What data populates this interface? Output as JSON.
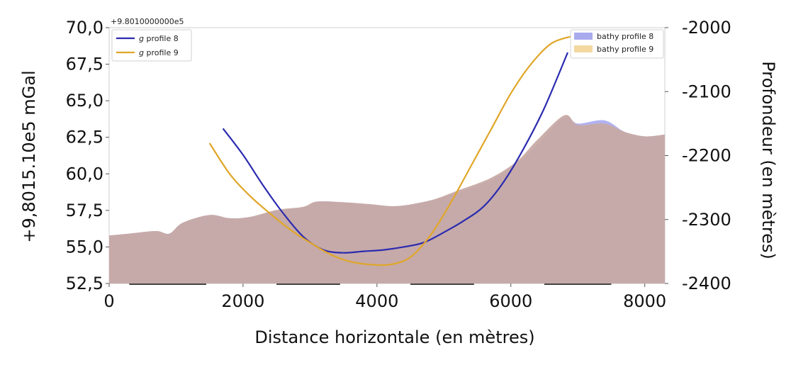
{
  "chart_data": {
    "type": "area",
    "offset_label": "+9.8010000000e5",
    "xlabel": "Distance horizontale (en mètres)",
    "ylabel_left": "+9,8015.10e5 mGal",
    "ylabel_right": "Profondeur (en mètres)",
    "xlim": [
      0,
      8300
    ],
    "ylim_left": [
      52.5,
      70.0
    ],
    "ylim_right": [
      -2400,
      -2000
    ],
    "x_ticks": [
      {
        "value": 0,
        "label": "0"
      },
      {
        "value": 2000,
        "label": "2000"
      },
      {
        "value": 4000,
        "label": "4000"
      },
      {
        "value": 6000,
        "label": "6000"
      },
      {
        "value": 8000,
        "label": "8000"
      }
    ],
    "y_left_ticks": [
      {
        "value": 52.5,
        "label": "52,5"
      },
      {
        "value": 55.0,
        "label": "55,0"
      },
      {
        "value": 57.5,
        "label": "57,5"
      },
      {
        "value": 60.0,
        "label": "60,0"
      },
      {
        "value": 62.5,
        "label": "62,5"
      },
      {
        "value": 65.0,
        "label": "65,0"
      },
      {
        "value": 67.5,
        "label": "67,5"
      },
      {
        "value": 70.0,
        "label": "70,0"
      }
    ],
    "y_right_ticks": [
      {
        "value": -2000,
        "label": "-2000"
      },
      {
        "value": -2100,
        "label": "-2100"
      },
      {
        "value": -2200,
        "label": "-2200"
      },
      {
        "value": -2300,
        "label": "-2300"
      },
      {
        "value": -2400,
        "label": "-2400"
      }
    ],
    "legend_left": {
      "placement": "top-left",
      "entries": [
        {
          "name": "g profile 8",
          "italic_prefix": "g",
          "rest": " profile 8",
          "color": "#2b2bb0"
        },
        {
          "name": "g profile 9",
          "italic_prefix": "g",
          "rest": " profile 9",
          "color": "#e0a628"
        }
      ]
    },
    "legend_right": {
      "placement": "top-right",
      "entries": [
        {
          "name": "bathy profile 8",
          "color": "#a9aaee"
        },
        {
          "name": "bathy profile 9",
          "color": "#f3d8a0"
        }
      ]
    },
    "series": [
      {
        "name": "g profile 8",
        "axis": "left",
        "kind": "line",
        "color": "#2b2bb0",
        "x": [
          1700,
          2000,
          2300,
          2600,
          2900,
          3200,
          3500,
          3800,
          4100,
          4400,
          4700,
          5000,
          5300,
          5600,
          5900,
          6200,
          6500,
          6850
        ],
        "y": [
          63.1,
          61.3,
          59.2,
          57.3,
          55.7,
          54.8,
          54.6,
          54.7,
          54.8,
          55.0,
          55.3,
          56.0,
          56.8,
          57.8,
          59.5,
          61.8,
          64.5,
          68.3
        ]
      },
      {
        "name": "g profile 9",
        "axis": "left",
        "kind": "line",
        "color": "#e0a628",
        "x": [
          1500,
          1800,
          2100,
          2400,
          2700,
          3000,
          3300,
          3600,
          3900,
          4200,
          4500,
          4800,
          5100,
          5400,
          5700,
          6000,
          6300,
          6600,
          6900
        ],
        "y": [
          62.1,
          60.0,
          58.5,
          57.3,
          56.2,
          55.3,
          54.5,
          54.0,
          53.8,
          53.8,
          54.3,
          55.8,
          58.0,
          60.5,
          63.0,
          65.5,
          67.5,
          68.9,
          69.4
        ]
      },
      {
        "name": "bathy profile 8",
        "axis": "right",
        "kind": "area",
        "color": "#a9aaee",
        "x": [
          0,
          300,
          700,
          900,
          1100,
          1500,
          1800,
          2100,
          2500,
          2900,
          3100,
          3500,
          3900,
          4300,
          4800,
          5200,
          5700,
          6100,
          6400,
          6800,
          7000,
          7400,
          7700,
          8000,
          8300
        ],
        "y": [
          -2325,
          -2322,
          -2318,
          -2322,
          -2305,
          -2293,
          -2298,
          -2296,
          -2286,
          -2281,
          -2272,
          -2273,
          -2276,
          -2279,
          -2270,
          -2258,
          -2238,
          -2212,
          -2182,
          -2140,
          -2150,
          -2145,
          -2163,
          -2170,
          -2167
        ]
      },
      {
        "name": "bathy profile 9",
        "axis": "right",
        "kind": "area",
        "color": "#f3d8a0",
        "x": [
          0,
          300,
          700,
          900,
          1100,
          1500,
          1800,
          2100,
          2500,
          2900,
          3100,
          3500,
          3900,
          4300,
          4800,
          5200,
          5700,
          6100,
          6400,
          6800,
          7000,
          7400,
          7700,
          8000,
          8300
        ],
        "y": [
          -2325,
          -2322,
          -2318,
          -2322,
          -2305,
          -2293,
          -2298,
          -2296,
          -2285,
          -2280,
          -2272,
          -2273,
          -2276,
          -2279,
          -2270,
          -2255,
          -2235,
          -2208,
          -2175,
          -2137,
          -2152,
          -2150,
          -2163,
          -2170,
          -2167
        ]
      }
    ]
  }
}
